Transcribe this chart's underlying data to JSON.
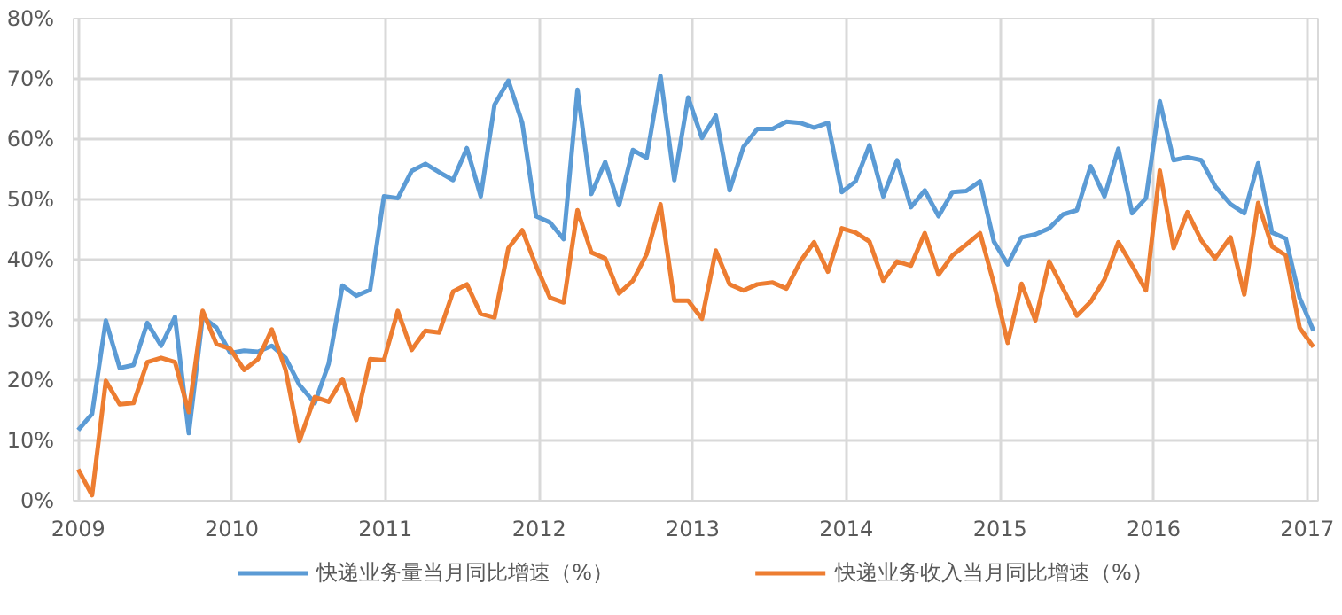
{
  "chart_data": {
    "type": "line",
    "x": [
      2009.0,
      2009.09,
      2009.18,
      2009.27,
      2009.36,
      2009.45,
      2009.54,
      2009.63,
      2009.72,
      2009.81,
      2009.9,
      2009.99,
      2010.08,
      2010.17,
      2010.26,
      2010.35,
      2010.44,
      2010.54,
      2010.63,
      2010.72,
      2010.81,
      2010.9,
      2010.99,
      2011.08,
      2011.17,
      2011.26,
      2011.35,
      2011.44,
      2011.53,
      2011.62,
      2011.71,
      2011.8,
      2011.89,
      2011.98,
      2012.07,
      2012.16,
      2012.25,
      2012.34,
      2012.43,
      2012.52,
      2012.61,
      2012.7,
      2012.79,
      2012.88,
      2012.97,
      2013.06,
      2013.15,
      2013.24,
      2013.33,
      2013.42,
      2013.52,
      2013.61,
      2013.7,
      2013.79,
      2013.88,
      2013.97,
      2014.06,
      2014.15,
      2014.24,
      2014.33,
      2014.42,
      2014.51,
      2014.6,
      2014.69,
      2014.78,
      2014.87,
      2014.96,
      2015.05,
      2015.14,
      2015.23,
      2015.32,
      2015.41,
      2015.5,
      2015.59,
      2015.68,
      2015.77,
      2015.86,
      2015.95,
      2016.04,
      2016.13,
      2016.22,
      2016.31,
      2016.4,
      2016.5,
      2016.59,
      2016.68,
      2016.77,
      2016.86,
      2016.95,
      2017.04
    ],
    "series": [
      {
        "name": "快递业务量当月同比增速（%）",
        "color": "#5b9bd5",
        "values": [
          11.7,
          14.4,
          29.9,
          22,
          22.5,
          29.5,
          25.7,
          30.5,
          11.2,
          30.5,
          28.7,
          24.5,
          24.9,
          24.7,
          25.7,
          23.7,
          19.2,
          16.2,
          22.7,
          35.7,
          34,
          35,
          50.5,
          50.2,
          54.7,
          55.9,
          54.5,
          53.2,
          58.5,
          50.5,
          65.7,
          69.7,
          62.7,
          47.2,
          46.2,
          43.4,
          68.2,
          50.9,
          56.2,
          49,
          58.2,
          56.9,
          70.5,
          53.2,
          66.9,
          60.2,
          63.9,
          51.5,
          58.7,
          61.7,
          61.7,
          62.9,
          62.7,
          61.9,
          62.7,
          51.2,
          53,
          59,
          50.5,
          56.5,
          48.7,
          51.5,
          47.2,
          51.2,
          51.4,
          53,
          43,
          39.2,
          43.7,
          44.2,
          45.2,
          47.5,
          48.2,
          55.5,
          50.5,
          58.4,
          47.7,
          50.2,
          66.3,
          56.5,
          57,
          56.5,
          52.2,
          49.2,
          47.7,
          56,
          44.5,
          43.5,
          33.7,
          28.2
        ]
      },
      {
        "name": "快递业务收入当月同比增速（%）",
        "color": "#ed7d31",
        "values": [
          5.2,
          0.9,
          19.9,
          16,
          16.2,
          23,
          23.7,
          23,
          14.7,
          31.5,
          26,
          25.2,
          21.7,
          23.5,
          28.4,
          21.7,
          9.9,
          17.2,
          16.4,
          20.2,
          13.4,
          23.5,
          23.3,
          31.5,
          25,
          28.2,
          27.9,
          34.7,
          35.9,
          31,
          30.4,
          41.9,
          44.9,
          39,
          33.7,
          32.9,
          48.2,
          41.2,
          40.2,
          34.4,
          36.5,
          40.9,
          49.2,
          33.2,
          33.2,
          30.2,
          41.5,
          35.9,
          34.9,
          35.9,
          36.2,
          35.2,
          39.7,
          42.9,
          38,
          45.2,
          44.5,
          43,
          36.5,
          39.7,
          39,
          44.4,
          37.5,
          40.7,
          42.5,
          44.4,
          36,
          26.2,
          36,
          29.9,
          39.7,
          35.2,
          30.7,
          33,
          36.7,
          42.9,
          39,
          34.9,
          54.8,
          41.9,
          47.9,
          43.2,
          40.2,
          43.7,
          34.2,
          49.4,
          42.2,
          40.7,
          28.7,
          25.5
        ]
      }
    ],
    "xlim": [
      2008.97,
      2017.07
    ],
    "xticks": [
      2009,
      2010,
      2011,
      2012,
      2013,
      2014,
      2015,
      2016,
      2017
    ],
    "ylim": [
      0,
      80
    ],
    "yticks": [
      {
        "value": 0,
        "label": "0%"
      },
      {
        "value": 10,
        "label": "10%"
      },
      {
        "value": 20,
        "label": "20%"
      },
      {
        "value": 30,
        "label": "30%"
      },
      {
        "value": 40,
        "label": "40%"
      },
      {
        "value": 50,
        "label": "50%"
      },
      {
        "value": 60,
        "label": "60%"
      },
      {
        "value": 70,
        "label": "70%"
      },
      {
        "value": 80,
        "label": "80%"
      }
    ],
    "grid": true,
    "legend": "bottom",
    "line_style": "solid"
  }
}
